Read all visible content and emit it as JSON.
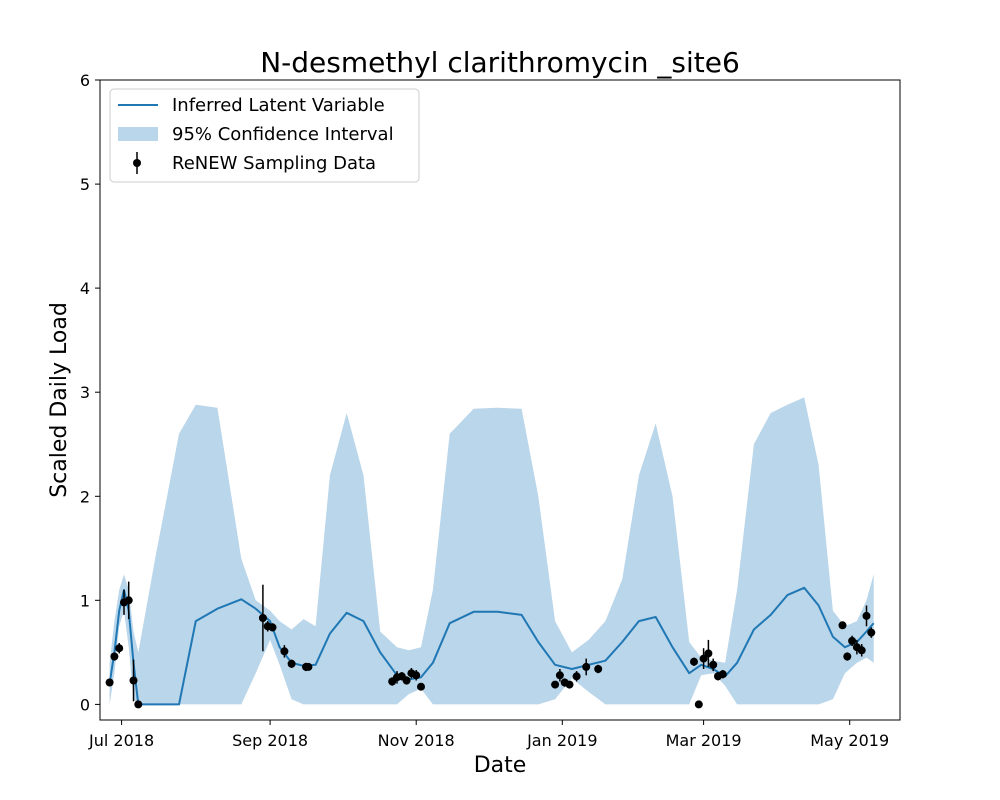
{
  "chart_data": {
    "type": "line",
    "title": "N-desmethyl clarithromycin _site6",
    "xlabel": "Date",
    "ylabel": "Scaled Daily Load",
    "xlim": [
      "2018-06-22",
      "2019-05-22"
    ],
    "ylim": [
      -0.15,
      6
    ],
    "yticks": [
      0,
      1,
      2,
      3,
      4,
      5,
      6
    ],
    "xticks": [
      {
        "date": "2018-07-01",
        "label": "Jul 2018"
      },
      {
        "date": "2018-09-01",
        "label": "Sep 2018"
      },
      {
        "date": "2018-11-01",
        "label": "Nov 2018"
      },
      {
        "date": "2019-01-01",
        "label": "Jan 2019"
      },
      {
        "date": "2019-03-01",
        "label": "Mar 2019"
      },
      {
        "date": "2019-05-01",
        "label": "May 2019"
      }
    ],
    "legend": {
      "position": "top-left",
      "entries": [
        "Inferred Latent Variable",
        "95% Confidence Interval",
        "ReNEW Sampling Data"
      ]
    },
    "colors": {
      "line": "#1f77b4",
      "band": "#bad6ea",
      "points": "#000000"
    },
    "grid": false,
    "series": [
      {
        "name": "Inferred Latent Variable",
        "kind": "line",
        "x": [
          "2018-06-26",
          "2018-06-28",
          "2018-06-30",
          "2018-07-02",
          "2018-07-04",
          "2018-07-06",
          "2018-07-08",
          "2018-07-15",
          "2018-07-20",
          "2018-07-25",
          "2018-08-01",
          "2018-08-10",
          "2018-08-20",
          "2018-08-26",
          "2018-09-01",
          "2018-09-05",
          "2018-09-10",
          "2018-09-15",
          "2018-09-20",
          "2018-09-26",
          "2018-10-03",
          "2018-10-10",
          "2018-10-17",
          "2018-10-24",
          "2018-10-29",
          "2018-11-03",
          "2018-11-08",
          "2018-11-15",
          "2018-11-25",
          "2018-12-05",
          "2018-12-15",
          "2018-12-22",
          "2018-12-29",
          "2019-01-05",
          "2019-01-12",
          "2019-01-19",
          "2019-01-26",
          "2019-02-02",
          "2019-02-09",
          "2019-02-16",
          "2019-02-23",
          "2019-02-28",
          "2019-03-05",
          "2019-03-10",
          "2019-03-15",
          "2019-03-22",
          "2019-03-29",
          "2019-04-05",
          "2019-04-12",
          "2019-04-18",
          "2019-04-24",
          "2019-04-29",
          "2019-05-04",
          "2019-05-08",
          "2019-05-11"
        ],
        "y": [
          0.2,
          0.5,
          0.9,
          1.1,
          0.9,
          0.4,
          0.0,
          0.0,
          0.0,
          0.0,
          0.8,
          0.92,
          1.01,
          0.92,
          0.8,
          0.55,
          0.4,
          0.37,
          0.38,
          0.68,
          0.88,
          0.8,
          0.5,
          0.28,
          0.24,
          0.26,
          0.4,
          0.78,
          0.89,
          0.89,
          0.86,
          0.6,
          0.38,
          0.34,
          0.38,
          0.42,
          0.6,
          0.8,
          0.84,
          0.55,
          0.3,
          0.38,
          0.34,
          0.27,
          0.4,
          0.72,
          0.86,
          1.05,
          1.12,
          0.95,
          0.65,
          0.55,
          0.6,
          0.7,
          0.78
        ]
      },
      {
        "name": "95% Confidence Interval",
        "kind": "band",
        "x": [
          "2018-06-26",
          "2018-06-28",
          "2018-06-30",
          "2018-07-02",
          "2018-07-04",
          "2018-07-06",
          "2018-07-08",
          "2018-07-15",
          "2018-07-20",
          "2018-07-25",
          "2018-08-01",
          "2018-08-10",
          "2018-08-20",
          "2018-08-26",
          "2018-09-01",
          "2018-09-05",
          "2018-09-10",
          "2018-09-15",
          "2018-09-20",
          "2018-09-26",
          "2018-10-03",
          "2018-10-10",
          "2018-10-17",
          "2018-10-24",
          "2018-10-29",
          "2018-11-03",
          "2018-11-08",
          "2018-11-15",
          "2018-11-25",
          "2018-12-05",
          "2018-12-15",
          "2018-12-22",
          "2018-12-29",
          "2019-01-05",
          "2019-01-12",
          "2019-01-19",
          "2019-01-26",
          "2019-02-02",
          "2019-02-09",
          "2019-02-16",
          "2019-02-23",
          "2019-02-28",
          "2019-03-05",
          "2019-03-10",
          "2019-03-15",
          "2019-03-22",
          "2019-03-29",
          "2019-04-05",
          "2019-04-12",
          "2019-04-18",
          "2019-04-24",
          "2019-04-29",
          "2019-05-04",
          "2019-05-08",
          "2019-05-11"
        ],
        "lower": [
          0.0,
          0.3,
          0.75,
          0.9,
          0.55,
          0.05,
          0.0,
          0.0,
          0.0,
          0.0,
          0.0,
          0.0,
          0.0,
          0.3,
          0.62,
          0.38,
          0.05,
          0.0,
          0.0,
          0.0,
          0.0,
          0.0,
          0.0,
          0.0,
          0.1,
          0.15,
          0.0,
          0.0,
          0.0,
          0.0,
          0.0,
          0.0,
          0.05,
          0.25,
          0.12,
          0.0,
          0.0,
          0.0,
          0.0,
          0.0,
          0.0,
          0.28,
          0.3,
          0.18,
          0.0,
          0.0,
          0.0,
          0.0,
          0.0,
          0.0,
          0.05,
          0.3,
          0.4,
          0.45,
          0.4
        ],
        "upper": [
          0.4,
          0.8,
          1.1,
          1.25,
          1.1,
          0.7,
          0.5,
          1.4,
          2.0,
          2.6,
          2.88,
          2.85,
          1.4,
          1.0,
          0.9,
          0.8,
          0.72,
          0.82,
          0.75,
          2.2,
          2.8,
          2.2,
          0.7,
          0.55,
          0.52,
          0.55,
          1.1,
          2.6,
          2.84,
          2.85,
          2.84,
          2.0,
          0.8,
          0.5,
          0.62,
          0.8,
          1.2,
          2.2,
          2.7,
          2.0,
          0.6,
          0.45,
          0.42,
          0.4,
          1.1,
          2.5,
          2.8,
          2.88,
          2.95,
          2.3,
          0.9,
          0.75,
          0.8,
          1.0,
          1.25
        ]
      },
      {
        "name": "ReNEW Sampling Data",
        "kind": "scatter",
        "x": [
          "2018-06-26",
          "2018-06-28",
          "2018-06-30",
          "2018-07-02",
          "2018-07-04",
          "2018-07-06",
          "2018-07-08",
          "2018-08-29",
          "2018-08-31",
          "2018-09-02",
          "2018-09-07",
          "2018-09-10",
          "2018-09-16",
          "2018-09-17",
          "2018-10-22",
          "2018-10-24",
          "2018-10-26",
          "2018-10-28",
          "2018-10-30",
          "2018-11-01",
          "2018-11-03",
          "2018-12-29",
          "2018-12-31",
          "2019-01-02",
          "2019-01-04",
          "2019-01-07",
          "2019-01-11",
          "2019-01-16",
          "2019-02-25",
          "2019-02-27",
          "2019-03-01",
          "2019-03-03",
          "2019-03-05",
          "2019-03-07",
          "2019-03-09",
          "2019-04-28",
          "2019-04-30",
          "2019-05-02",
          "2019-05-04",
          "2019-05-06",
          "2019-05-08",
          "2019-05-10"
        ],
        "y": [
          0.21,
          0.46,
          0.54,
          0.98,
          1.0,
          0.23,
          0.0,
          0.83,
          0.75,
          0.74,
          0.51,
          0.39,
          0.36,
          0.36,
          0.22,
          0.26,
          0.27,
          0.23,
          0.3,
          0.28,
          0.17,
          0.19,
          0.28,
          0.21,
          0.19,
          0.27,
          0.36,
          0.34,
          0.41,
          0.0,
          0.44,
          0.49,
          0.38,
          0.27,
          0.29,
          0.76,
          0.46,
          0.61,
          0.55,
          0.52,
          0.85,
          0.69
        ],
        "err": [
          0.03,
          0.04,
          0.05,
          0.12,
          0.18,
          0.2,
          0.03,
          0.32,
          0.05,
          0.04,
          0.06,
          0.04,
          0.04,
          0.03,
          0.04,
          0.06,
          0.04,
          0.04,
          0.05,
          0.05,
          0.03,
          0.03,
          0.06,
          0.04,
          0.03,
          0.05,
          0.08,
          0.04,
          0.04,
          0.03,
          0.1,
          0.13,
          0.06,
          0.04,
          0.04,
          0.03,
          0.04,
          0.05,
          0.07,
          0.06,
          0.1,
          0.05
        ]
      }
    ]
  }
}
